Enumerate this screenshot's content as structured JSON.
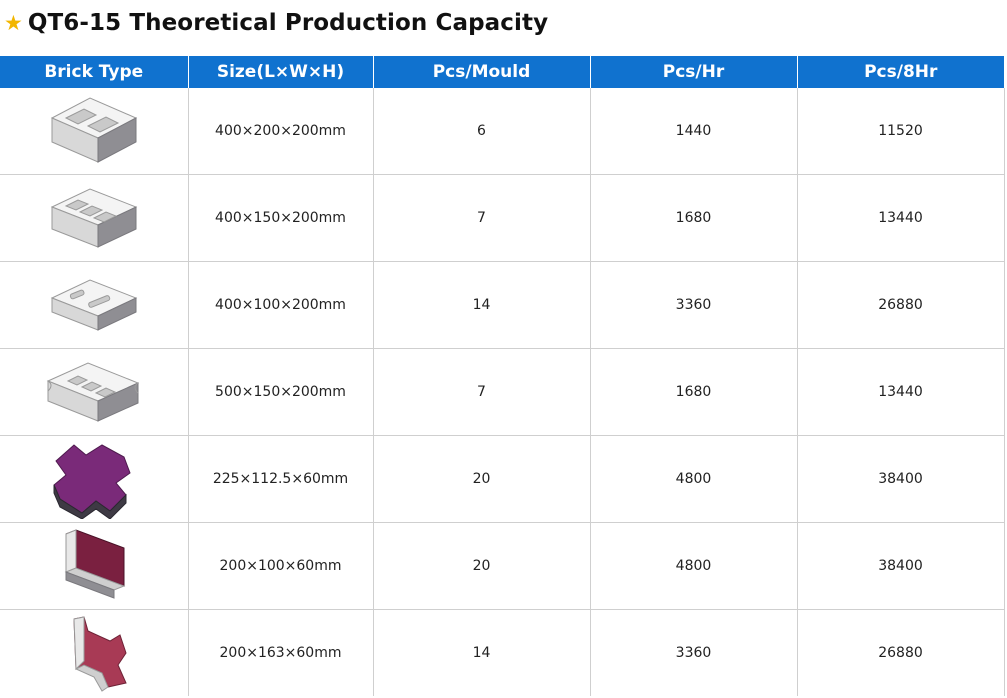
{
  "title": {
    "star": "★",
    "text": "QT6-15 Theoretical Production Capacity"
  },
  "table": {
    "headers": [
      "Brick Type",
      "Size(L×W×H)",
      "Pcs/Mould",
      "Pcs/Hr",
      "Pcs/8Hr"
    ],
    "rows": [
      {
        "brick_icon": "hollow-block-2-cavity-icon",
        "size": "400×200×200mm",
        "pcs_mould": "6",
        "pcs_hr": "1440",
        "pcs_8hr": "11520"
      },
      {
        "brick_icon": "hollow-block-3-cavity-icon",
        "size": "400×150×200mm",
        "pcs_mould": "7",
        "pcs_hr": "1680",
        "pcs_8hr": "13440"
      },
      {
        "brick_icon": "hollow-block-thin-icon",
        "size": "400×100×200mm",
        "pcs_mould": "14",
        "pcs_hr": "3360",
        "pcs_8hr": "26880"
      },
      {
        "brick_icon": "hollow-block-grooved-icon",
        "size": "500×150×200mm",
        "pcs_mould": "7",
        "pcs_hr": "1680",
        "pcs_8hr": "13440"
      },
      {
        "brick_icon": "zigzag-paver-purple-icon",
        "size": "225×112.5×60mm",
        "pcs_mould": "20",
        "pcs_hr": "4800",
        "pcs_8hr": "38400"
      },
      {
        "brick_icon": "rectangular-paver-maroon-icon",
        "size": "200×100×60mm",
        "pcs_mould": "20",
        "pcs_hr": "4800",
        "pcs_8hr": "38400"
      },
      {
        "brick_icon": "i-shape-paver-red-icon",
        "size": "200×163×60mm",
        "pcs_mould": "14",
        "pcs_hr": "3360",
        "pcs_8hr": "26880"
      }
    ]
  },
  "colors": {
    "header_bg": "#1072cf",
    "star": "#f2b600",
    "block_top": "#f4f4f4",
    "block_side": "#8f8e93",
    "paver_purple": "#7a2a79",
    "paver_maroon": "#7a2040",
    "paver_red": "#a83a55"
  }
}
